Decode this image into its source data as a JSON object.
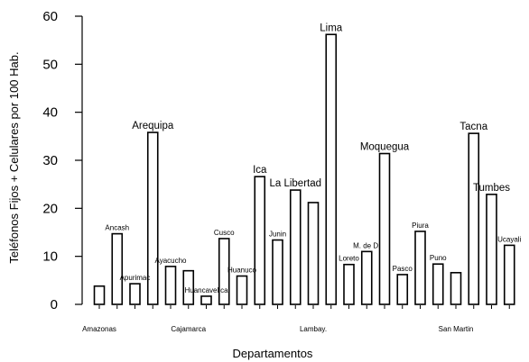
{
  "chart_data": {
    "type": "bar",
    "xlabel": "Departamentos",
    "ylabel": "Teléfonos Fijos + Celulares por 100 Hab.",
    "ylim": [
      0,
      60
    ],
    "yticks": [
      0,
      10,
      20,
      30,
      40,
      50,
      60
    ],
    "grid": false,
    "categories": [
      "Amazonas",
      "Ancash",
      "Apurimac",
      "Arequipa",
      "Ayacucho",
      "Cajamarca",
      "Huancavelica",
      "Cusco",
      "Huanuco",
      "Ica",
      "Junin",
      "La Libertad",
      "Lambay.",
      "Lima",
      "Loreto",
      "M. de D.",
      "Moquegua",
      "Pasco",
      "Piura",
      "Puno",
      "San Martin",
      "Tacna",
      "Tumbes",
      "Ucayali"
    ],
    "values": [
      3.8,
      14.7,
      4.3,
      35.8,
      7.9,
      7.0,
      1.7,
      13.7,
      5.9,
      26.6,
      13.4,
      23.8,
      21.2,
      56.2,
      8.3,
      11.0,
      31.4,
      6.2,
      15.2,
      8.4,
      6.6,
      35.6,
      22.9,
      12.3
    ],
    "label_positions": [
      "bottom",
      "top",
      "top",
      "top",
      "top",
      "bottom",
      "top",
      "top",
      "top",
      "top",
      "top",
      "top",
      "bottom",
      "top",
      "top",
      "top",
      "top",
      "top",
      "top",
      "top",
      "bottom",
      "top",
      "top",
      "top"
    ],
    "label_sizes": [
      "small",
      "small",
      "small",
      "large",
      "small",
      "small",
      "small",
      "small",
      "small",
      "large",
      "small",
      "large",
      "small",
      "large",
      "small",
      "small",
      "large",
      "small",
      "small",
      "small",
      "small",
      "large",
      "large",
      "small"
    ]
  }
}
